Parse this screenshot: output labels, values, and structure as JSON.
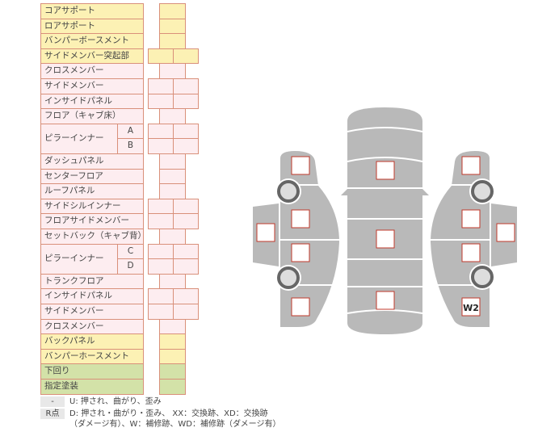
{
  "rows": [
    {
      "label": "コアサポート",
      "color": "y",
      "cells": 1
    },
    {
      "label": "ロアサポート",
      "color": "y",
      "cells": 1
    },
    {
      "label": "バンパーボースメント",
      "color": "y",
      "cells": 1
    },
    {
      "label": "サイドメンバー突起部",
      "color": "y",
      "cells": 2
    },
    {
      "label": "クロスメンバー",
      "color": "p",
      "cells": 1
    },
    {
      "label": "サイドメンバー",
      "color": "p",
      "cells": 2
    },
    {
      "label": "インサイドパネル",
      "color": "p",
      "cells": 2
    },
    {
      "label": "フロア（キャブ床）",
      "color": "p",
      "cells": 1
    },
    {
      "label": "ピラーインナー",
      "color": "p",
      "cells": 2,
      "sub": [
        "A",
        "B"
      ]
    },
    {
      "label": "ダッシュパネル",
      "color": "p",
      "cells": 1
    },
    {
      "label": "センターフロア",
      "color": "p",
      "cells": 1
    },
    {
      "label": "ルーフパネル",
      "color": "p",
      "cells": 1
    },
    {
      "label": "サイドシルインナー",
      "color": "p",
      "cells": 2
    },
    {
      "label": "フロアサイドメンバー",
      "color": "p",
      "cells": 2
    },
    {
      "label": "セットバック（キャブ背）",
      "color": "p",
      "cells": 1
    },
    {
      "label": "ピラーインナー",
      "color": "p",
      "cells": 2,
      "sub": [
        "C",
        "D"
      ]
    },
    {
      "label": "トランクフロア",
      "color": "p",
      "cells": 1
    },
    {
      "label": "インサイドパネル",
      "color": "p",
      "cells": 2
    },
    {
      "label": "サイドメンバー",
      "color": "p",
      "cells": 2
    },
    {
      "label": "クロスメンバー",
      "color": "p",
      "cells": 1
    },
    {
      "label": "バックパネル",
      "color": "y",
      "cells": 1
    },
    {
      "label": "バンパーホースメント",
      "color": "y",
      "cells": 1
    },
    {
      "label": "下回り",
      "color": "g",
      "cells": 1
    },
    {
      "label": "指定塗装",
      "color": "g",
      "cells": 1
    }
  ],
  "legend": {
    "tag1": "-",
    "line1": "U: 押され、曲がり、歪み",
    "tag2": "R点",
    "line2": "D: 押され・曲がり・歪み、 XX：交換跡、XD：交換跡",
    "line3": "（ダメージ有）、W：補修跡、WD：補修跡（ダメージ有）"
  },
  "diagram": {
    "marked_label": "W2"
  },
  "colors": {
    "yellow": "#fcf1b4",
    "pink": "#fdedf0",
    "green": "#d3e2a8",
    "border": "#d9907a",
    "body": "#b9b9b9",
    "square_border": "#c0392b"
  }
}
